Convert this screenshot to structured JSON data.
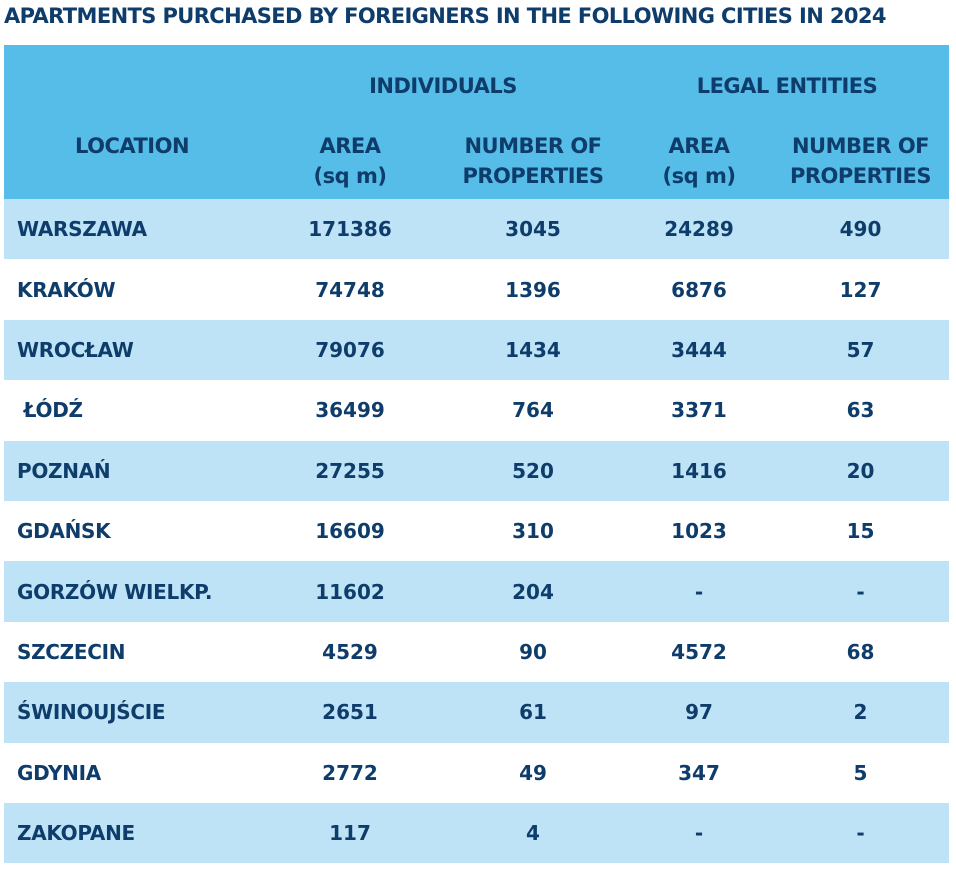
{
  "chart_data": {
    "type": "table",
    "title": "APARTMENTS PURCHASED BY FOREIGNERS IN THE FOLLOWING CITIES IN 2024",
    "groups": [
      "INDIVIDUALS",
      "LEGAL ENTITIES"
    ],
    "columns": {
      "location": "LOCATION",
      "ind_area": [
        "AREA",
        "(sq m)"
      ],
      "ind_props": [
        "NUMBER OF",
        "PROPERTIES"
      ],
      "leg_area": [
        "AREA",
        "(sq m)"
      ],
      "leg_props": [
        "NUMBER OF",
        "PROPERTIES"
      ]
    },
    "rows": [
      {
        "location": "WARSZAWA",
        "ind_area": "171386",
        "ind_props": "3045",
        "leg_area": "24289",
        "leg_props": "490"
      },
      {
        "location": "KRAKÓW",
        "ind_area": "74748",
        "ind_props": "1396",
        "leg_area": "6876",
        "leg_props": "127"
      },
      {
        "location": "WROCŁAW",
        "ind_area": "79076",
        "ind_props": "1434",
        "leg_area": "3444",
        "leg_props": "57"
      },
      {
        "location": " ŁÓDŹ",
        "ind_area": "36499",
        "ind_props": "764",
        "leg_area": "3371",
        "leg_props": "63"
      },
      {
        "location": "POZNAŃ",
        "ind_area": "27255",
        "ind_props": "520",
        "leg_area": "1416",
        "leg_props": "20"
      },
      {
        "location": "GDAŃSK",
        "ind_area": "16609",
        "ind_props": "310",
        "leg_area": "1023",
        "leg_props": "15"
      },
      {
        "location": "GORZÓW WIELKP.",
        "ind_area": "11602",
        "ind_props": "204",
        "leg_area": "-",
        "leg_props": "-"
      },
      {
        "location": "SZCZECIN",
        "ind_area": "4529",
        "ind_props": "90",
        "leg_area": "4572",
        "leg_props": "68"
      },
      {
        "location": "ŚWINOUJŚCIE",
        "ind_area": "2651",
        "ind_props": "61",
        "leg_area": "97",
        "leg_props": "2"
      },
      {
        "location": "GDYNIA",
        "ind_area": "2772",
        "ind_props": "49",
        "leg_area": "347",
        "leg_props": "5"
      },
      {
        "location": "ZAKOPANE",
        "ind_area": "117",
        "ind_props": "4",
        "leg_area": "-",
        "leg_props": "-"
      }
    ],
    "colors": {
      "header_bg": "#56bce8",
      "row_shade": "#bee3f6",
      "row_plain": "#ffffff",
      "text": "#0f3d6b"
    }
  }
}
